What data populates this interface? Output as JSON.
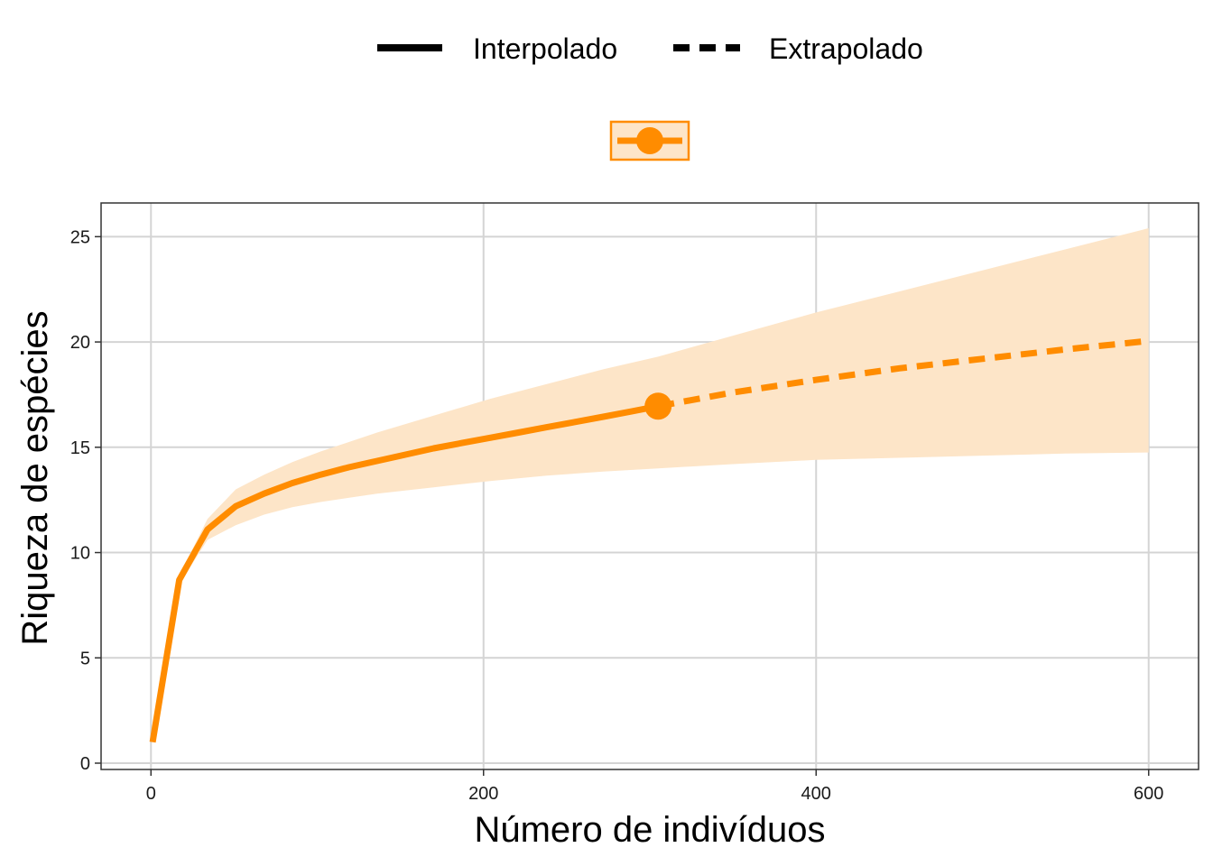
{
  "chart_data": {
    "type": "line",
    "xlabel": "Número de indivíduos",
    "ylabel": "Riqueza de espécies",
    "xlim": [
      -30,
      630
    ],
    "ylim": [
      -0.3,
      26.6
    ],
    "x_ticks": [
      0,
      200,
      400,
      600
    ],
    "y_ticks": [
      0,
      5,
      10,
      15,
      20,
      25
    ],
    "x_tick_labels": [
      "0",
      "200",
      "400",
      "600"
    ],
    "y_tick_labels": [
      "0",
      "5",
      "10",
      "15",
      "20",
      "25"
    ],
    "grid": true,
    "legend": {
      "position": "top",
      "linetype_entries": [
        {
          "label": "Interpolado",
          "style": "solid"
        },
        {
          "label": "Extrapolado",
          "style": "dashed"
        }
      ],
      "color_key_color": "#ff8c00"
    },
    "series_color": "#ff8c00",
    "ribbon_color": "#fde5c8",
    "interpolated": {
      "x": [
        1,
        17,
        34,
        51,
        68,
        85,
        102,
        119,
        136,
        153,
        170,
        187,
        204,
        221,
        238,
        255,
        272,
        289,
        305
      ],
      "y": [
        1.0,
        8.7,
        11.1,
        12.2,
        12.8,
        13.3,
        13.7,
        14.05,
        14.35,
        14.65,
        14.95,
        15.2,
        15.45,
        15.7,
        15.95,
        16.2,
        16.45,
        16.7,
        16.95
      ]
    },
    "extrapolated": {
      "x": [
        305,
        350,
        400,
        450,
        500,
        550,
        600
      ],
      "y": [
        16.95,
        17.6,
        18.2,
        18.75,
        19.2,
        19.65,
        20.05
      ]
    },
    "observed_point": {
      "x": 305,
      "y": 16.95
    },
    "ribbon": {
      "x": [
        1,
        17,
        34,
        51,
        68,
        85,
        102,
        136,
        170,
        204,
        238,
        272,
        305,
        350,
        400,
        450,
        500,
        550,
        600
      ],
      "lower": [
        1.0,
        8.5,
        10.6,
        11.3,
        11.8,
        12.15,
        12.4,
        12.8,
        13.1,
        13.4,
        13.65,
        13.85,
        14.0,
        14.2,
        14.4,
        14.5,
        14.6,
        14.7,
        14.75
      ],
      "upper": [
        1.0,
        8.9,
        11.6,
        13.0,
        13.7,
        14.3,
        14.8,
        15.7,
        16.5,
        17.3,
        18.0,
        18.7,
        19.3,
        20.3,
        21.4,
        22.4,
        23.4,
        24.4,
        25.4
      ]
    }
  }
}
